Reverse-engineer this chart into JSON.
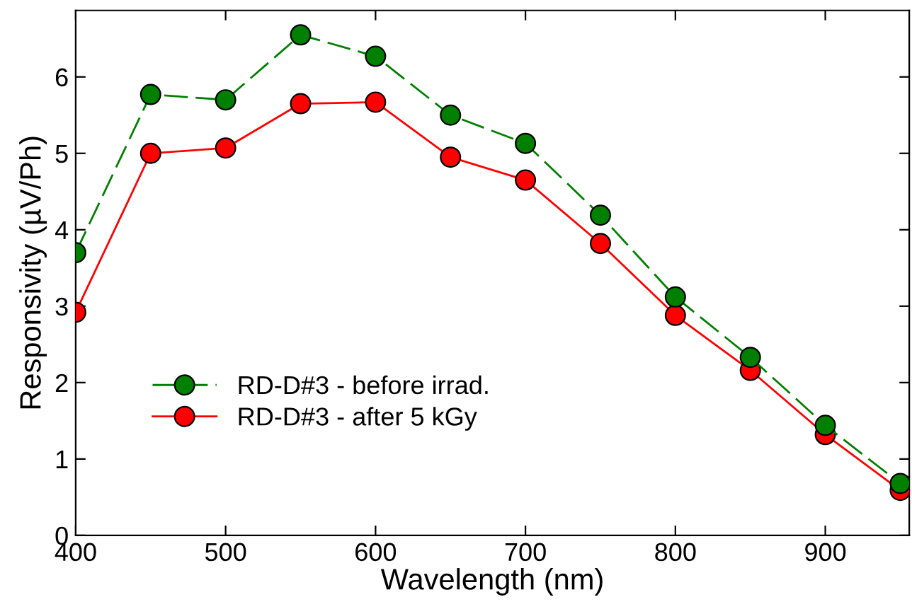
{
  "chart_data": {
    "type": "line",
    "xlabel": "Wavelength (nm)",
    "ylabel": "Responsivity (µV/Ph)",
    "x": [
      400,
      450,
      500,
      550,
      600,
      650,
      700,
      750,
      800,
      850,
      900,
      950
    ],
    "xlim": [
      400,
      956
    ],
    "xticks": [
      400,
      500,
      600,
      700,
      800,
      900
    ],
    "ylim": [
      0,
      6.87
    ],
    "yticks": [
      0,
      1,
      2,
      3,
      4,
      5,
      6
    ],
    "marker": "circle",
    "grid": false,
    "legend": "bottom left",
    "series": [
      {
        "name": "RD-D#3 - before irrad.",
        "color": "#007f00",
        "line_style": "dashed",
        "values": [
          3.7,
          5.77,
          5.7,
          6.55,
          6.27,
          5.5,
          5.13,
          4.19,
          3.12,
          2.33,
          1.44,
          0.68
        ]
      },
      {
        "name": "RD-D#3 - after 5 kGy",
        "color": "#ff0000",
        "line_style": "solid",
        "values": [
          2.92,
          5.0,
          5.07,
          5.65,
          5.67,
          4.95,
          4.65,
          3.82,
          2.88,
          2.16,
          1.32,
          0.59
        ]
      }
    ]
  }
}
